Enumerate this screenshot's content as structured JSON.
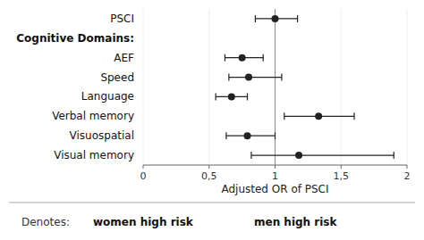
{
  "chart_data": {
    "type": "forest",
    "categories": [
      "PSCI",
      "Cognitive Domains:",
      "AEF",
      "Speed",
      "Language",
      "Verbal memory",
      "Visuospatial",
      "Visual memory"
    ],
    "values": [
      1.0,
      null,
      0.75,
      0.8,
      0.67,
      1.33,
      0.79,
      1.18
    ],
    "ci_low": [
      0.85,
      null,
      0.62,
      0.65,
      0.55,
      1.07,
      0.63,
      0.82
    ],
    "ci_high": [
      1.17,
      null,
      0.91,
      1.05,
      0.79,
      1.6,
      1.0,
      1.9
    ],
    "xlabel": "Adjusted OR of PSCI",
    "xlim": [
      0,
      2
    ],
    "xticks": [
      0,
      {
        "value": 0.5,
        "label": "0,5"
      },
      1,
      {
        "value": 1.5,
        "label": "1,5"
      },
      2
    ],
    "reference_x": 1.0,
    "annotations": [
      "Denotes:",
      "women high risk",
      "men high risk"
    ],
    "color": "#222222"
  }
}
